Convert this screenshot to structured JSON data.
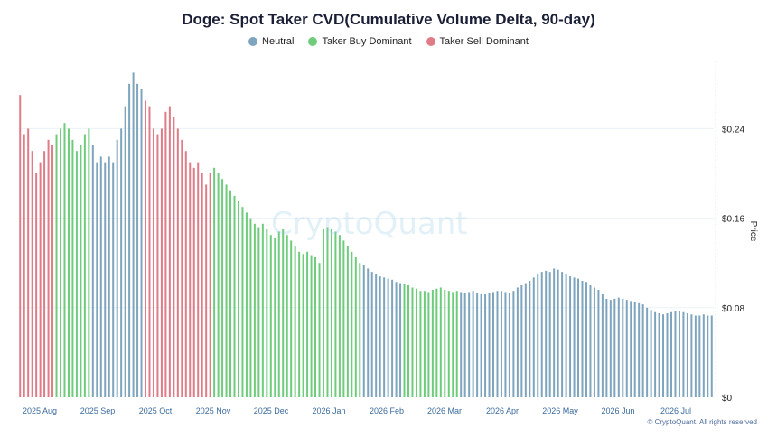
{
  "colors": {
    "neutral": "#7fa5be",
    "buy": "#6fcc7c",
    "sell": "#e07c87",
    "tick_text": "#3b6a9c",
    "axis_text": "#222222",
    "grid": "#eaf3f9"
  },
  "chart_data": {
    "type": "bar",
    "title": "Doge: Spot Taker CVD(Cumulative Volume Delta, 90-day)",
    "legend": {
      "placement": "top-center",
      "items": [
        {
          "name": "Neutral",
          "key": "neutral"
        },
        {
          "name": "Taker Buy Dominant",
          "key": "buy"
        },
        {
          "name": "Taker Sell Dominant",
          "key": "sell"
        }
      ]
    },
    "ylabel": "Price",
    "ylim": [
      0,
      0.3
    ],
    "y_ticks": [
      {
        "value": 0,
        "label": "$0"
      },
      {
        "value": 0.08,
        "label": "$0.08"
      },
      {
        "value": 0.16,
        "label": "$0.16"
      },
      {
        "value": 0.24,
        "label": "$0.24"
      }
    ],
    "x_ticks": [
      "2025 Aug",
      "2025 Sep",
      "2025 Oct",
      "2025 Nov",
      "2025 Dec",
      "2026 Jan",
      "2026 Feb",
      "2026 Mar",
      "2026 Apr",
      "2026 May",
      "2026 Jun",
      "2026 Jul"
    ],
    "grid": true,
    "series": [
      {
        "segments": [
          {
            "state": "sell",
            "values": [
              0.27,
              0.235,
              0.24,
              0.22,
              0.2,
              0.21,
              0.22,
              0.23,
              0.225
            ]
          },
          {
            "state": "buy",
            "values": [
              0.235,
              0.24,
              0.245,
              0.24,
              0.23,
              0.22,
              0.225,
              0.235,
              0.24
            ]
          },
          {
            "state": "neutral",
            "values": [
              0.225,
              0.21,
              0.215,
              0.21,
              0.215,
              0.21,
              0.23,
              0.24,
              0.26,
              0.28,
              0.29,
              0.28,
              0.275
            ]
          },
          {
            "state": "sell",
            "values": [
              0.265,
              0.26,
              0.24,
              0.235,
              0.24,
              0.255,
              0.26,
              0.25,
              0.24,
              0.23,
              0.22,
              0.21,
              0.205,
              0.21,
              0.2,
              0.19,
              0.2
            ]
          },
          {
            "state": "buy",
            "values": [
              0.205,
              0.2,
              0.195,
              0.19,
              0.185,
              0.18,
              0.175,
              0.17,
              0.165,
              0.16,
              0.155,
              0.152,
              0.155,
              0.15,
              0.145,
              0.142,
              0.148,
              0.15,
              0.145,
              0.14,
              0.135,
              0.13,
              0.128,
              0.13,
              0.127,
              0.125,
              0.12,
              0.15,
              0.152,
              0.15,
              0.148,
              0.145,
              0.14,
              0.135,
              0.13,
              0.125,
              0.12
            ]
          },
          {
            "state": "neutral",
            "values": [
              0.118,
              0.115,
              0.112,
              0.11,
              0.108,
              0.107,
              0.106,
              0.105,
              0.103,
              0.102
            ]
          },
          {
            "state": "buy",
            "values": [
              0.101,
              0.1,
              0.098,
              0.097,
              0.095,
              0.095,
              0.094,
              0.096,
              0.097,
              0.098,
              0.096,
              0.095,
              0.094,
              0.095
            ]
          },
          {
            "state": "neutral",
            "values": [
              0.094,
              0.093,
              0.094,
              0.095,
              0.093,
              0.092,
              0.092,
              0.093,
              0.094,
              0.095,
              0.095,
              0.094,
              0.093,
              0.095,
              0.098,
              0.1,
              0.102,
              0.104,
              0.107,
              0.11,
              0.112,
              0.113,
              0.112,
              0.115,
              0.114,
              0.112,
              0.11,
              0.108,
              0.107,
              0.106,
              0.104,
              0.103,
              0.1,
              0.098,
              0.096,
              0.092,
              0.088,
              0.087,
              0.088,
              0.089,
              0.088,
              0.087,
              0.086,
              0.085,
              0.084,
              0.083,
              0.08,
              0.078,
              0.076,
              0.075,
              0.074,
              0.075,
              0.076,
              0.077,
              0.077,
              0.076,
              0.075,
              0.074,
              0.073,
              0.073,
              0.074,
              0.073,
              0.073
            ]
          }
        ]
      }
    ]
  },
  "watermark": "CryptoQuant",
  "credit": "© CryptoQuant. All rights reserved"
}
